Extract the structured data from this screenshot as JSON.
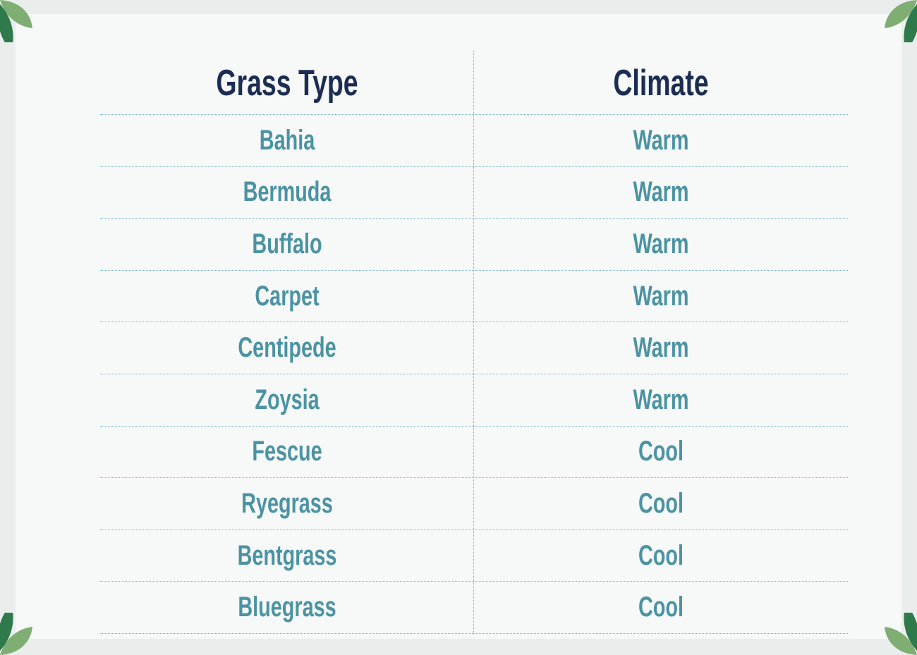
{
  "colors": {
    "header_text": "#1b2d52",
    "body_text": "#4b93a3",
    "rule": "#6fb3c2",
    "leaf_dark": "#2f7a4b",
    "leaf_light": "#7fae72"
  },
  "icons": {
    "corner": "leaf-icon"
  },
  "table": {
    "headers": [
      "Grass Type",
      "Climate"
    ],
    "rows": [
      [
        "Bahia",
        "Warm"
      ],
      [
        "Bermuda",
        "Warm"
      ],
      [
        "Buffalo",
        "Warm"
      ],
      [
        "Carpet",
        "Warm"
      ],
      [
        "Centipede",
        "Warm"
      ],
      [
        "Zoysia",
        "Warm"
      ],
      [
        "Fescue",
        "Cool"
      ],
      [
        "Ryegrass",
        "Cool"
      ],
      [
        "Bentgrass",
        "Cool"
      ],
      [
        "Bluegrass",
        "Cool"
      ]
    ]
  }
}
